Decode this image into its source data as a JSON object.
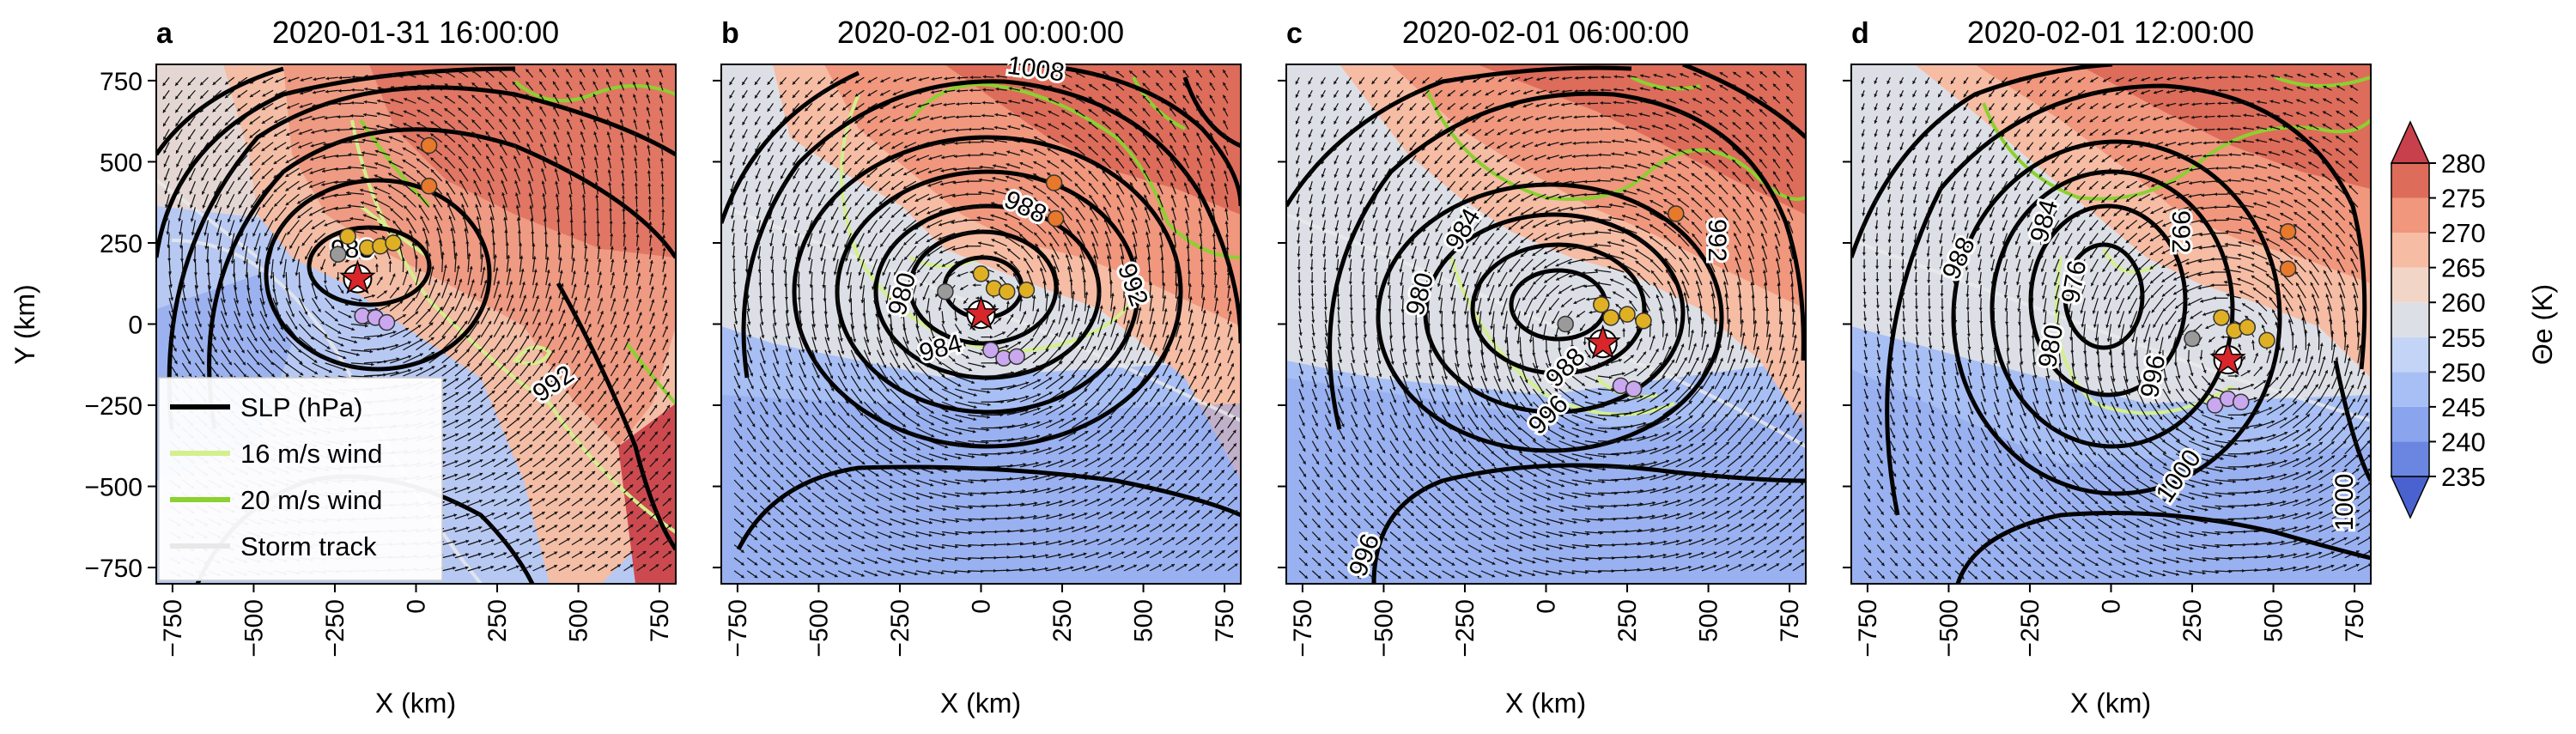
{
  "figure": {
    "panels": [
      {
        "letter": "a",
        "title": "2020-01-31 16:00:00"
      },
      {
        "letter": "b",
        "title": "2020-02-01 00:00:00"
      },
      {
        "letter": "c",
        "title": "2020-02-01 06:00:00"
      },
      {
        "letter": "d",
        "title": "2020-02-01 12:00:00"
      }
    ],
    "xlabel": "X (km)",
    "ylabel": "Y (km)",
    "xticks": [
      -750,
      -500,
      -250,
      0,
      250,
      500,
      750
    ],
    "yticks": [
      -750,
      -500,
      -250,
      0,
      250,
      500,
      750
    ],
    "xlim": [
      -800,
      800
    ],
    "ylim": [
      -800,
      800
    ],
    "legend": {
      "placement": "lower-left of panel a",
      "entries": [
        {
          "label": "SLP (hPa)",
          "color": "#000000"
        },
        {
          "label": "16 m/s wind",
          "color": "#d4f08c"
        },
        {
          "label": "20 m/s wind",
          "color": "#8bd130"
        },
        {
          "label": "Storm track",
          "color": "#e8e8e8"
        }
      ]
    },
    "colorbar": {
      "label": "Θe (K)",
      "ticks": [
        235,
        240,
        245,
        250,
        255,
        260,
        265,
        270,
        275,
        280
      ],
      "levels": [
        230,
        235,
        240,
        245,
        250,
        255,
        260,
        265,
        270,
        275,
        280,
        285
      ],
      "colors": [
        "#4a62cf",
        "#6a86e0",
        "#8aa4ee",
        "#a8bff5",
        "#c4d4f6",
        "#dddfe6",
        "#f1d6c8",
        "#f6bca4",
        "#f0977d",
        "#de6c5a",
        "#c8404b"
      ]
    }
  },
  "chart_data": [
    {
      "type": "contour",
      "panel": "a",
      "title": "2020-01-31 16:00:00",
      "xlabel": "X (km)",
      "ylabel": "Y (km)",
      "xlim": [
        -800,
        800
      ],
      "ylim": [
        -800,
        800
      ],
      "slp_contour_labels": [
        "988",
        "992"
      ],
      "storm_center": [
        -180,
        140
      ],
      "station_points": [
        {
          "x": 40,
          "y": 550,
          "color": "#e8782a"
        },
        {
          "x": 40,
          "y": 425,
          "color": "#e8782a"
        },
        {
          "x": -210,
          "y": 270,
          "color": "#e0b024"
        },
        {
          "x": -150,
          "y": 235,
          "color": "#e0b024"
        },
        {
          "x": -110,
          "y": 240,
          "color": "#e0b024"
        },
        {
          "x": -70,
          "y": 250,
          "color": "#e0b024"
        },
        {
          "x": -240,
          "y": 215,
          "color": "#9a9a9a"
        },
        {
          "x": -165,
          "y": 25,
          "color": "#c9a8f0"
        },
        {
          "x": -125,
          "y": 20,
          "color": "#c9a8f0"
        },
        {
          "x": -90,
          "y": 5,
          "color": "#c9a8f0"
        }
      ]
    },
    {
      "type": "contour",
      "panel": "b",
      "title": "2020-02-01 00:00:00",
      "xlabel": "X (km)",
      "xlim": [
        -800,
        800
      ],
      "ylim": [
        -800,
        800
      ],
      "slp_contour_labels": [
        "1008",
        "988",
        "980",
        "984",
        "992"
      ],
      "storm_center": [
        0,
        30
      ],
      "station_points": [
        {
          "x": 225,
          "y": 435,
          "color": "#e8782a"
        },
        {
          "x": 230,
          "y": 325,
          "color": "#e8782a"
        },
        {
          "x": 0,
          "y": 155,
          "color": "#e0b024"
        },
        {
          "x": 40,
          "y": 110,
          "color": "#e0b024"
        },
        {
          "x": 80,
          "y": 100,
          "color": "#e0b024"
        },
        {
          "x": 140,
          "y": 105,
          "color": "#e0b024"
        },
        {
          "x": -110,
          "y": 100,
          "color": "#9a9a9a"
        },
        {
          "x": 30,
          "y": -80,
          "color": "#c9a8f0"
        },
        {
          "x": 70,
          "y": -105,
          "color": "#c9a8f0"
        },
        {
          "x": 110,
          "y": -100,
          "color": "#c9a8f0"
        }
      ]
    },
    {
      "type": "contour",
      "panel": "c",
      "title": "2020-02-01 06:00:00",
      "xlabel": "X (km)",
      "xlim": [
        -800,
        800
      ],
      "ylim": [
        -800,
        800
      ],
      "slp_contour_labels": [
        "984",
        "980",
        "992",
        "988",
        "996",
        "996"
      ],
      "storm_center": [
        175,
        -60
      ],
      "station_points": [
        {
          "x": 400,
          "y": 340,
          "color": "#e8782a"
        },
        {
          "x": 170,
          "y": 60,
          "color": "#e0b024"
        },
        {
          "x": 200,
          "y": 20,
          "color": "#e0b024"
        },
        {
          "x": 250,
          "y": 30,
          "color": "#e0b024"
        },
        {
          "x": 300,
          "y": 10,
          "color": "#e0b024"
        },
        {
          "x": 60,
          "y": 0,
          "color": "#9a9a9a"
        },
        {
          "x": 230,
          "y": -190,
          "color": "#c9a8f0"
        },
        {
          "x": 270,
          "y": -200,
          "color": "#c9a8f0"
        }
      ]
    },
    {
      "type": "contour",
      "panel": "d",
      "title": "2020-02-01 12:00:00",
      "xlabel": "X (km)",
      "xlim": [
        -800,
        800
      ],
      "ylim": [
        -800,
        800
      ],
      "slp_contour_labels": [
        "988",
        "984",
        "976",
        "980",
        "992",
        "996",
        "1000",
        "1000"
      ],
      "storm_center": [
        360,
        -110
      ],
      "station_points": [
        {
          "x": 545,
          "y": 285,
          "color": "#e8782a"
        },
        {
          "x": 545,
          "y": 170,
          "color": "#e8782a"
        },
        {
          "x": 340,
          "y": 20,
          "color": "#e0b024"
        },
        {
          "x": 380,
          "y": -20,
          "color": "#e0b024"
        },
        {
          "x": 420,
          "y": -10,
          "color": "#e0b024"
        },
        {
          "x": 480,
          "y": -50,
          "color": "#e0b024"
        },
        {
          "x": 250,
          "y": -45,
          "color": "#9a9a9a"
        },
        {
          "x": 320,
          "y": -250,
          "color": "#c9a8f0"
        },
        {
          "x": 360,
          "y": -230,
          "color": "#c9a8f0"
        },
        {
          "x": 400,
          "y": -240,
          "color": "#c9a8f0"
        }
      ]
    }
  ]
}
